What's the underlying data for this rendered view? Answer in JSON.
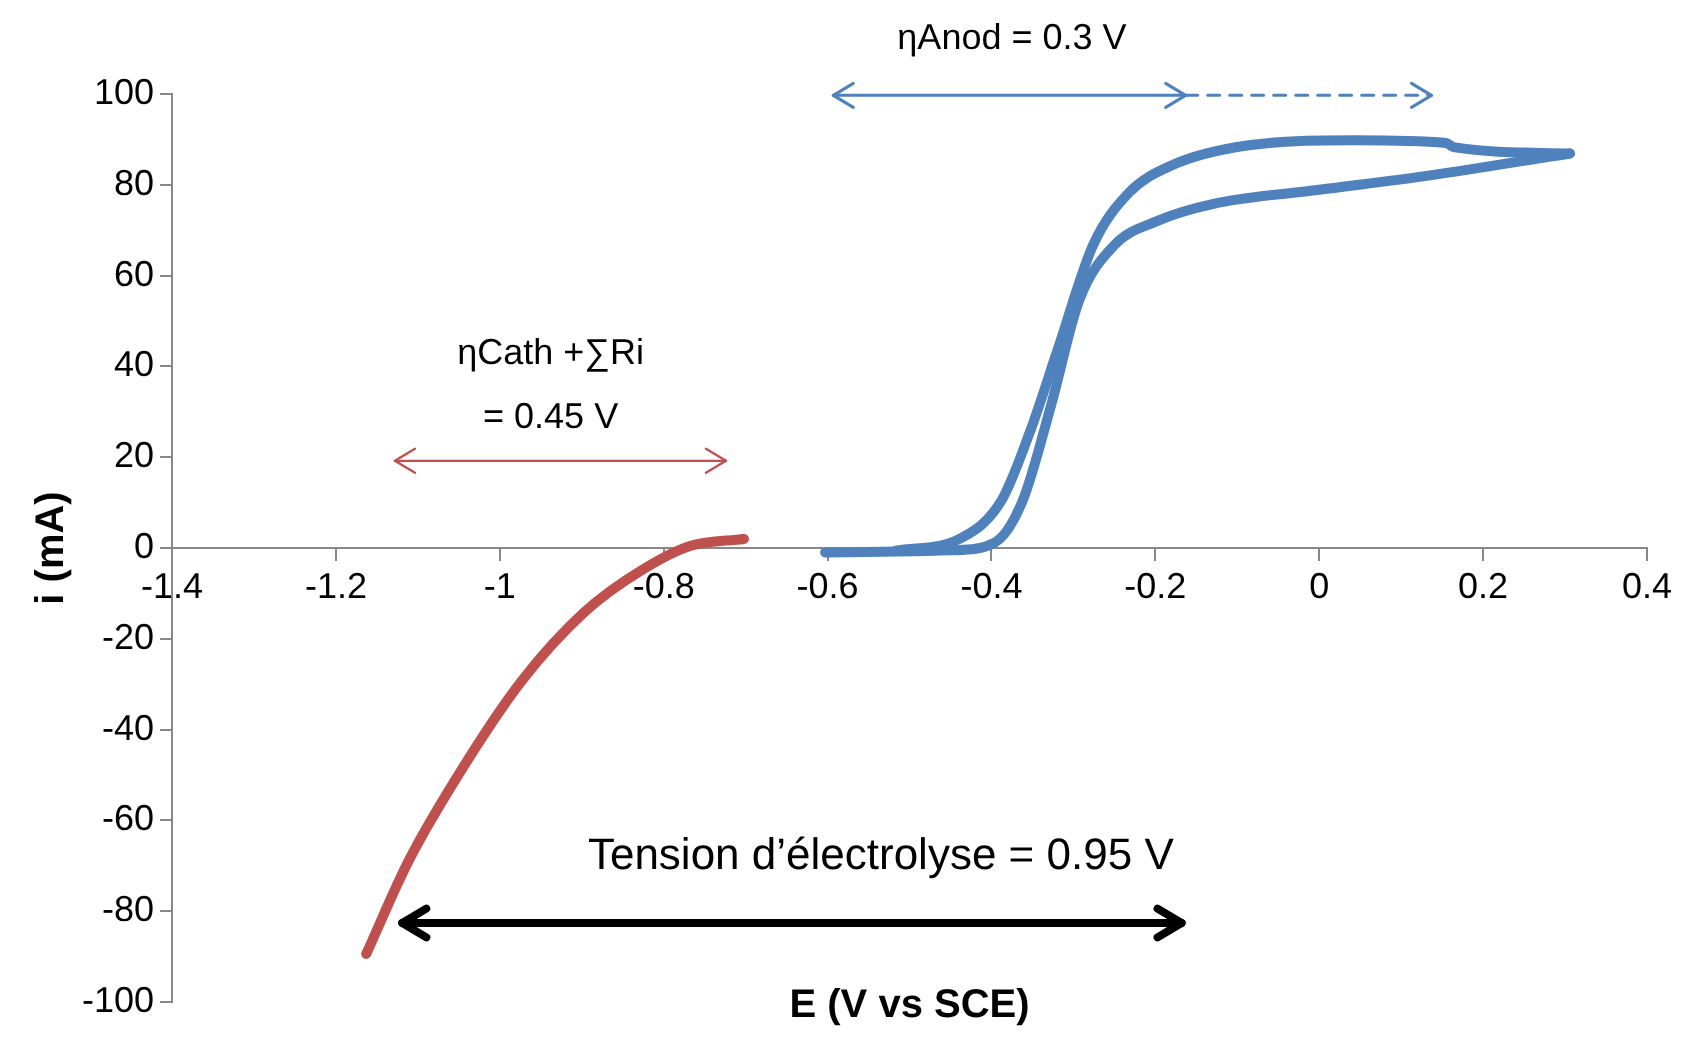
{
  "chart_data": {
    "type": "line",
    "xlabel": "E (V vs SCE)",
    "ylabel": "i (mA)",
    "xlim": [
      -1.4,
      0.4
    ],
    "xticks": [
      -1.4,
      -1.2,
      -1,
      -0.8,
      -0.6,
      -0.4,
      -0.2,
      0,
      0.2,
      0.4
    ],
    "ylim": [
      -100,
      100
    ],
    "yticks": [
      -100,
      -80,
      -60,
      -40,
      -20,
      0,
      20,
      40,
      60,
      80,
      100
    ],
    "grid": false,
    "legend": false,
    "marker": "none",
    "line_style": "solid",
    "series": [
      {
        "color": "#c0504d",
        "x": [
          -1.163,
          -1.111,
          -1.042,
          -0.973,
          -0.896,
          -0.827,
          -0.767,
          -0.702
        ],
        "values": [
          -89.4,
          -68.8,
          -47.5,
          -29.2,
          -14,
          -4.9,
          0.5,
          2
        ]
      },
      {
        "color": "#4f81bd",
        "x": [
          -0.603,
          -0.448,
          -0.396,
          -0.362,
          -0.327,
          -0.293,
          -0.25,
          -0.198,
          -0.129,
          0,
          0.129,
          0.306
        ],
        "values": [
          -1,
          -0.5,
          1.2,
          10.4,
          31.6,
          54.5,
          66.7,
          72,
          75.8,
          78.9,
          81.9,
          86.9
        ]
      },
      {
        "color": "#4f81bd",
        "x": [
          -0.517,
          -0.439,
          -0.388,
          -0.353,
          -0.319,
          -0.276,
          -0.233,
          -0.181,
          -0.086,
          0.043,
          0.155,
          0.164,
          0.306
        ],
        "values": [
          -0.6,
          2,
          10.4,
          25.6,
          43.8,
          66.7,
          78.1,
          84.2,
          88.7,
          89.8,
          89.2,
          88.3,
          86.9
        ]
      }
    ],
    "annotations": [
      "ηAnod = 0.3 V",
      "ηCath +∑Ri\n= 0.45 V",
      "Tension d’électrolyse = 0.95 V"
    ]
  }
}
